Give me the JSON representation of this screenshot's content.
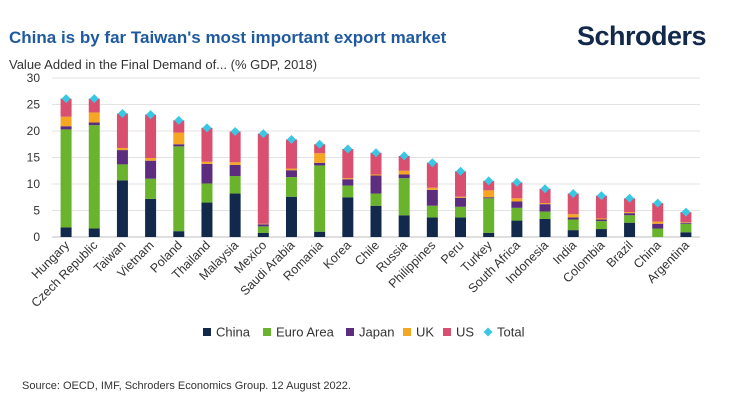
{
  "header": {
    "title": "China is by far Taiwan's most important export market",
    "logo_text": "Schroders",
    "subtitle": "Value Added in the Final Demand of... (% GDP, 2018)"
  },
  "footer": {
    "source": "Source: OECD, IMF, Schroders Economics Group. 12 August 2022."
  },
  "chart_data": {
    "type": "bar",
    "stacked": true,
    "title": "China is by far Taiwan's most important export market",
    "subtitle": "Value Added in the Final Demand of... (% GDP, 2018)",
    "ylim": [
      0,
      30
    ],
    "yticks": [
      0,
      5,
      10,
      15,
      20,
      25,
      30
    ],
    "grid": true,
    "legend": "bottom",
    "categories": [
      "Hungary",
      "Czech Republic",
      "Taiwan",
      "Vietnam",
      "Poland",
      "Thailand",
      "Malaysia",
      "Mexico",
      "Saudi Arabia",
      "Romania",
      "Korea",
      "Chile",
      "Russia",
      "Philippines",
      "Peru",
      "Turkey",
      "South Africa",
      "Indonesia",
      "India",
      "Colombia",
      "Brazil",
      "China",
      "Argentina"
    ],
    "series": [
      {
        "name": "China",
        "color": "#13294b",
        "values": [
          1.8,
          1.6,
          10.7,
          7.2,
          1.1,
          6.5,
          8.2,
          0.8,
          7.6,
          1.0,
          7.5,
          5.9,
          4.1,
          3.7,
          3.7,
          0.8,
          3.1,
          3.4,
          1.3,
          1.5,
          2.7,
          0.0,
          0.9
        ]
      },
      {
        "name": "Euro Area",
        "color": "#6ab42d",
        "values": [
          18.5,
          19.5,
          3.0,
          3.8,
          16.0,
          3.6,
          3.3,
          1.2,
          3.7,
          12.5,
          2.2,
          2.3,
          7.0,
          2.2,
          2.0,
          6.5,
          2.4,
          1.4,
          2.0,
          1.5,
          1.4,
          1.6,
          1.6
        ]
      },
      {
        "name": "Japan",
        "color": "#5c2d7f",
        "values": [
          0.6,
          0.5,
          2.7,
          3.4,
          0.4,
          3.7,
          2.1,
          0.4,
          1.3,
          0.5,
          1.2,
          3.4,
          0.7,
          3.0,
          1.7,
          0.2,
          1.2,
          1.4,
          0.4,
          0.3,
          0.4,
          0.9,
          0.2
        ]
      },
      {
        "name": "UK",
        "color": "#f5a623",
        "values": [
          1.8,
          1.9,
          0.4,
          0.5,
          2.2,
          0.4,
          0.5,
          0.1,
          0.3,
          1.8,
          0.2,
          0.2,
          0.7,
          0.4,
          0.2,
          1.3,
          0.6,
          0.2,
          0.6,
          0.2,
          0.2,
          0.4,
          0.1
        ]
      },
      {
        "name": "US",
        "color": "#d84f6f",
        "values": [
          3.4,
          2.6,
          6.5,
          8.2,
          2.3,
          6.4,
          5.8,
          17.0,
          5.5,
          1.7,
          5.5,
          4.1,
          2.8,
          4.7,
          4.8,
          1.8,
          3.0,
          2.7,
          3.9,
          4.3,
          2.6,
          3.5,
          1.9
        ]
      },
      {
        "name": "Total",
        "color": "#39c8e4",
        "values": [
          26.1,
          26.1,
          23.3,
          23.1,
          22.0,
          20.6,
          19.9,
          19.5,
          18.4,
          17.5,
          16.6,
          15.9,
          15.3,
          14.0,
          12.4,
          10.6,
          10.3,
          9.1,
          8.2,
          7.8,
          7.3,
          6.4,
          4.7
        ]
      }
    ]
  }
}
